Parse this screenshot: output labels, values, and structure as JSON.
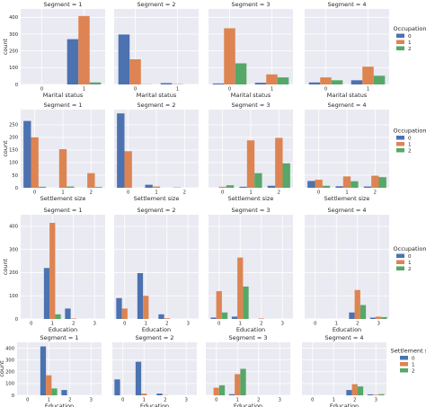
{
  "palette": [
    "#4c72b0",
    "#dd8452",
    "#55a868"
  ],
  "panel_background": "#eaeaf2",
  "grid_color": "#ffffff",
  "chart_data": [
    {
      "type": "bar",
      "row": 0,
      "xlabel": "Marital status",
      "ylabel": "count",
      "ylim": [
        0,
        450
      ],
      "yticks": [
        0,
        100,
        200,
        300,
        400
      ],
      "sharey": true,
      "hue": "Occupation",
      "hue_levels": [
        "0",
        "1",
        "2"
      ],
      "categories": [
        "0",
        "1"
      ],
      "facets": [
        {
          "title": "Segment = 1",
          "series": [
            {
              "name": "0",
              "values": [
                0,
                270
              ]
            },
            {
              "name": "1",
              "values": [
                0,
                408
              ]
            },
            {
              "name": "2",
              "values": [
                0,
                12
              ]
            }
          ]
        },
        {
          "title": "Segment = 2",
          "series": [
            {
              "name": "0",
              "values": [
                298,
                8
              ]
            },
            {
              "name": "1",
              "values": [
                150,
                2
              ]
            },
            {
              "name": "2",
              "values": [
                1,
                0
              ]
            }
          ]
        },
        {
          "title": "Segment = 3",
          "series": [
            {
              "name": "0",
              "values": [
                6,
                10
              ]
            },
            {
              "name": "1",
              "values": [
                335,
                60
              ]
            },
            {
              "name": "2",
              "values": [
                126,
                42
              ]
            }
          ]
        },
        {
          "title": "Segment = 4",
          "series": [
            {
              "name": "0",
              "values": [
                12,
                25
              ]
            },
            {
              "name": "1",
              "values": [
                42,
                106
              ]
            },
            {
              "name": "2",
              "values": [
                25,
                52
              ]
            }
          ]
        }
      ]
    },
    {
      "type": "bar",
      "row": 1,
      "xlabel": "Settlement size",
      "ylabel": "count",
      "ylim": [
        0,
        310
      ],
      "yticks": [
        0,
        50,
        100,
        150,
        200,
        250
      ],
      "sharey": true,
      "hue": "Occupation",
      "hue_levels": [
        "0",
        "1",
        "2"
      ],
      "categories": [
        "0",
        "1",
        "2"
      ],
      "facets": [
        {
          "title": "Segment = 1",
          "series": [
            {
              "name": "0",
              "values": [
                265,
                0,
                0
              ]
            },
            {
              "name": "1",
              "values": [
                200,
                153,
                58
              ]
            },
            {
              "name": "2",
              "values": [
                4,
                5,
                3
              ]
            }
          ]
        },
        {
          "title": "Segment = 2",
          "series": [
            {
              "name": "0",
              "values": [
                295,
                12,
                1
              ]
            },
            {
              "name": "1",
              "values": [
                145,
                5,
                0
              ]
            },
            {
              "name": "2",
              "values": [
                0,
                0,
                0
              ]
            }
          ]
        },
        {
          "title": "Segment = 3",
          "series": [
            {
              "name": "0",
              "values": [
                0,
                4,
                8
              ]
            },
            {
              "name": "1",
              "values": [
                4,
                188,
                198
              ]
            },
            {
              "name": "2",
              "values": [
                10,
                58,
                97
              ]
            }
          ]
        },
        {
          "title": "Segment = 4",
          "series": [
            {
              "name": "0",
              "values": [
                27,
                6,
                5
              ]
            },
            {
              "name": "1",
              "values": [
                32,
                45,
                48
              ]
            },
            {
              "name": "2",
              "values": [
                8,
                26,
                42
              ]
            }
          ]
        }
      ]
    },
    {
      "type": "bar",
      "row": 2,
      "xlabel": "Education",
      "ylabel": "count",
      "ylim": [
        0,
        450
      ],
      "yticks": [
        0,
        100,
        200,
        300,
        400
      ],
      "sharey": true,
      "hue": "Occupation",
      "hue_levels": [
        "0",
        "1",
        "2"
      ],
      "categories": [
        "0",
        "1",
        "2",
        "3"
      ],
      "facets": [
        {
          "title": "Segment = 1",
          "series": [
            {
              "name": "0",
              "values": [
                0,
                220,
                45,
                0
              ]
            },
            {
              "name": "1",
              "values": [
                0,
                415,
                2,
                0
              ]
            },
            {
              "name": "2",
              "values": [
                0,
                20,
                0,
                0
              ]
            }
          ]
        },
        {
          "title": "Segment = 2",
          "series": [
            {
              "name": "0",
              "values": [
                90,
                198,
                20,
                0
              ]
            },
            {
              "name": "1",
              "values": [
                45,
                100,
                3,
                0
              ]
            },
            {
              "name": "2",
              "values": [
                0,
                0,
                0,
                0
              ]
            }
          ]
        },
        {
          "title": "Segment = 3",
          "series": [
            {
              "name": "0",
              "values": [
                6,
                10,
                0,
                0
              ]
            },
            {
              "name": "1",
              "values": [
                120,
                265,
                2,
                0
              ]
            },
            {
              "name": "2",
              "values": [
                28,
                140,
                0,
                0
              ]
            }
          ]
        },
        {
          "title": "Segment = 4",
          "series": [
            {
              "name": "0",
              "values": [
                0,
                0,
                28,
                6
              ]
            },
            {
              "name": "1",
              "values": [
                0,
                0,
                125,
                10
              ]
            },
            {
              "name": "2",
              "values": [
                0,
                0,
                60,
                8
              ]
            }
          ]
        }
      ]
    },
    {
      "type": "bar",
      "row": 3,
      "xlabel": "Education",
      "ylabel": "count",
      "ylim": [
        0,
        450
      ],
      "yticks": [
        0,
        100,
        200,
        300,
        400
      ],
      "sharey": true,
      "hue": "Settlement size",
      "hue_levels": [
        "0",
        "1",
        "2"
      ],
      "categories": [
        "0",
        "1",
        "2",
        "3"
      ],
      "facets": [
        {
          "title": "Segment = 1",
          "series": [
            {
              "name": "0",
              "values": [
                0,
                415,
                45,
                0
              ]
            },
            {
              "name": "1",
              "values": [
                0,
                170,
                0,
                0
              ]
            },
            {
              "name": "2",
              "values": [
                0,
                58,
                0,
                0
              ]
            }
          ]
        },
        {
          "title": "Segment = 2",
          "series": [
            {
              "name": "0",
              "values": [
                135,
                285,
                15,
                0
              ]
            },
            {
              "name": "1",
              "values": [
                0,
                15,
                2,
                0
              ]
            },
            {
              "name": "2",
              "values": [
                0,
                0,
                0,
                0
              ]
            }
          ]
        },
        {
          "title": "Segment = 3",
          "series": [
            {
              "name": "0",
              "values": [
                0,
                10,
                0,
                0
              ]
            },
            {
              "name": "1",
              "values": [
                65,
                180,
                0,
                0
              ]
            },
            {
              "name": "2",
              "values": [
                85,
                225,
                0,
                0
              ]
            }
          ]
        },
        {
          "title": "Segment = 4",
          "series": [
            {
              "name": "0",
              "values": [
                0,
                0,
                45,
                8
              ]
            },
            {
              "name": "1",
              "values": [
                0,
                0,
                95,
                5
              ]
            },
            {
              "name": "2",
              "values": [
                0,
                0,
                75,
                10
              ]
            }
          ]
        }
      ]
    }
  ]
}
